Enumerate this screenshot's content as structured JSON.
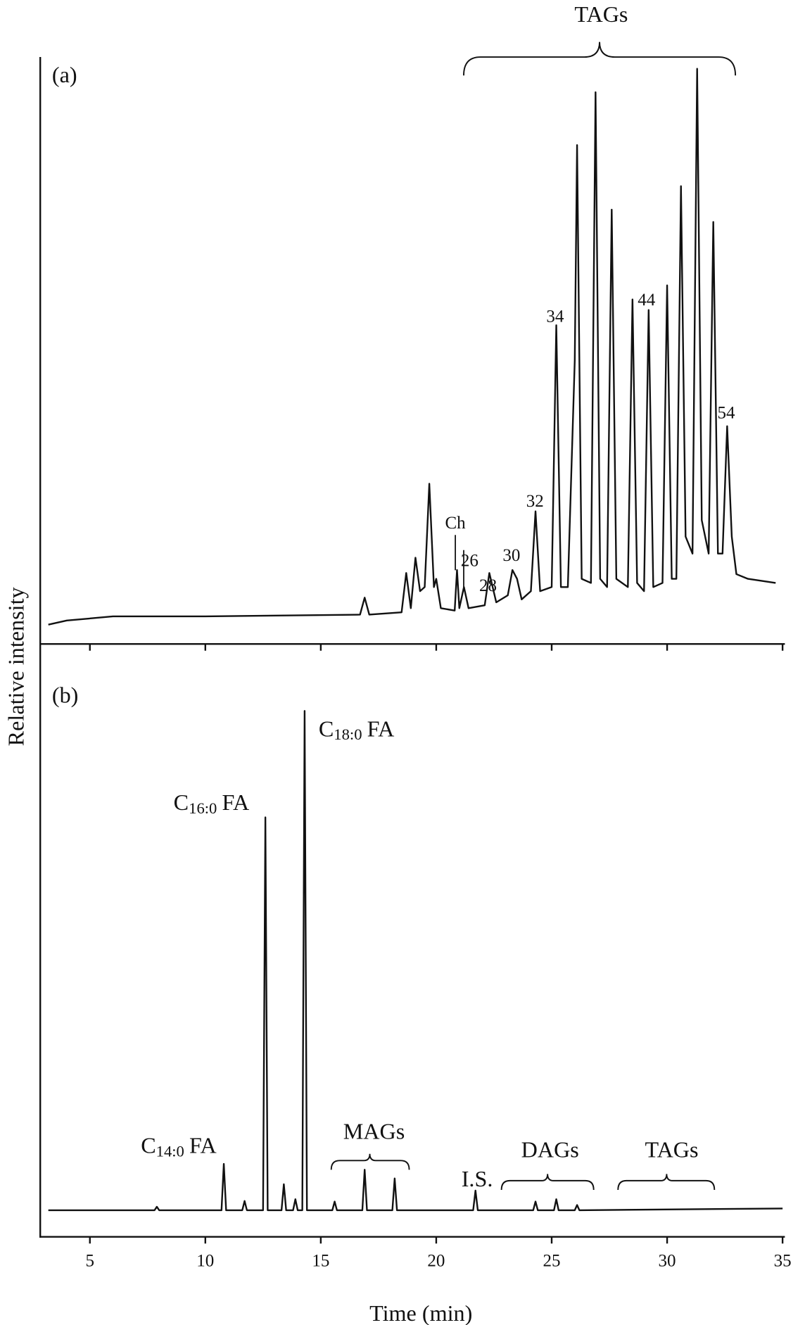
{
  "chart_data": [
    {
      "type": "line",
      "panel_label": "(a)",
      "ylabel": "Relative intensity",
      "xlim": [
        2.85,
        35.1
      ],
      "ylim": [
        0,
        100
      ],
      "xticks": [
        5,
        10,
        15,
        20,
        25,
        30,
        35
      ],
      "x": [
        3.2,
        4,
        6,
        10,
        16.7,
        16.9,
        17.1,
        18.5,
        18.7,
        18.9,
        19.1,
        19.3,
        19.5,
        19.7,
        19.9,
        20,
        20.2,
        20.8,
        20.9,
        21,
        21.2,
        21.4,
        22.1,
        22.3,
        22.6,
        23.1,
        23.3,
        23.5,
        23.7,
        24.1,
        24.3,
        24.5,
        25,
        25.2,
        25.4,
        25.7,
        26,
        26.1,
        26.3,
        26.7,
        26.9,
        27.1,
        27.4,
        27.6,
        27.8,
        28.3,
        28.5,
        28.7,
        29,
        29.2,
        29.4,
        29.8,
        30,
        30.2,
        30.4,
        30.6,
        30.8,
        31.1,
        31.3,
        31.5,
        31.8,
        32,
        32.2,
        32.4,
        32.6,
        32.8,
        33,
        33.5,
        34.7
      ],
      "series": [
        {
          "color": "#111111",
          "values": [
            3.3,
            4.0,
            4.7,
            4.7,
            5.0,
            7.9,
            5.0,
            5.4,
            12.1,
            6.1,
            14.7,
            9.0,
            9.7,
            27.3,
            9.7,
            11.1,
            6.1,
            5.7,
            12.6,
            6.1,
            9.7,
            6.1,
            6.6,
            12.1,
            7.1,
            8.3,
            12.6,
            11.1,
            7.6,
            9.0,
            22.6,
            9.0,
            9.7,
            54.3,
            9.7,
            9.7,
            48.3,
            85.0,
            11.1,
            10.4,
            94.0,
            11.1,
            9.7,
            74.0,
            11.1,
            9.7,
            58.7,
            10.4,
            9.0,
            56.9,
            9.7,
            10.4,
            61.1,
            11.1,
            11.1,
            78.0,
            18.3,
            15.4,
            98.0,
            21.1,
            15.4,
            71.9,
            15.4,
            15.4,
            37.1,
            18.3,
            11.9,
            11.1,
            10.4
          ]
        }
      ],
      "annotations": {
        "group": "TAGs",
        "peaks": [
          "34",
          "44",
          "54",
          "32",
          "30",
          "28",
          "26",
          "Ch"
        ]
      }
    },
    {
      "type": "line",
      "panel_label": "(b)",
      "xlabel": "Time (min)",
      "xlim": [
        2.85,
        35.1
      ],
      "ylim": [
        0,
        100
      ],
      "xticks": [
        5,
        10,
        15,
        20,
        25,
        30,
        35
      ],
      "x": [
        3.2,
        7.8,
        7.9,
        8,
        10.7,
        10.8,
        10.9,
        11.6,
        11.7,
        11.8,
        12.5,
        12.6,
        12.7,
        13.3,
        13.4,
        13.5,
        13.8,
        13.9,
        14,
        14.2,
        14.3,
        14.4,
        15.5,
        15.6,
        15.7,
        16.8,
        16.9,
        17,
        18.1,
        18.2,
        18.3,
        21.6,
        21.7,
        21.8,
        24.2,
        24.3,
        24.4,
        25.1,
        25.2,
        25.3,
        26,
        26.1,
        26.2,
        35
      ],
      "series": [
        {
          "color": "#111111",
          "values": [
            4.6,
            4.6,
            5.2,
            4.6,
            4.6,
            12.6,
            4.6,
            4.6,
            6.2,
            4.6,
            4.6,
            72.5,
            4.6,
            4.6,
            9.1,
            4.6,
            4.6,
            6.5,
            4.6,
            4.6,
            90.9,
            4.6,
            4.6,
            6.1,
            4.6,
            4.6,
            11.6,
            4.6,
            4.6,
            10.1,
            4.6,
            4.6,
            8.0,
            4.6,
            4.6,
            6.1,
            4.6,
            4.6,
            6.5,
            4.6,
            4.6,
            5.5,
            4.6,
            4.9
          ]
        }
      ],
      "annotations": {
        "c18": {
          "main": "C",
          "sub": "18:0",
          "suffix": "FA"
        },
        "c16": {
          "main": "C",
          "sub": "16:0",
          "suffix": "FA"
        },
        "c14": {
          "main": "C",
          "sub": "14:0",
          "suffix": "FA"
        },
        "mags": "MAGs",
        "is": "I.S.",
        "dags": "DAGs",
        "tags": "TAGs"
      }
    }
  ]
}
